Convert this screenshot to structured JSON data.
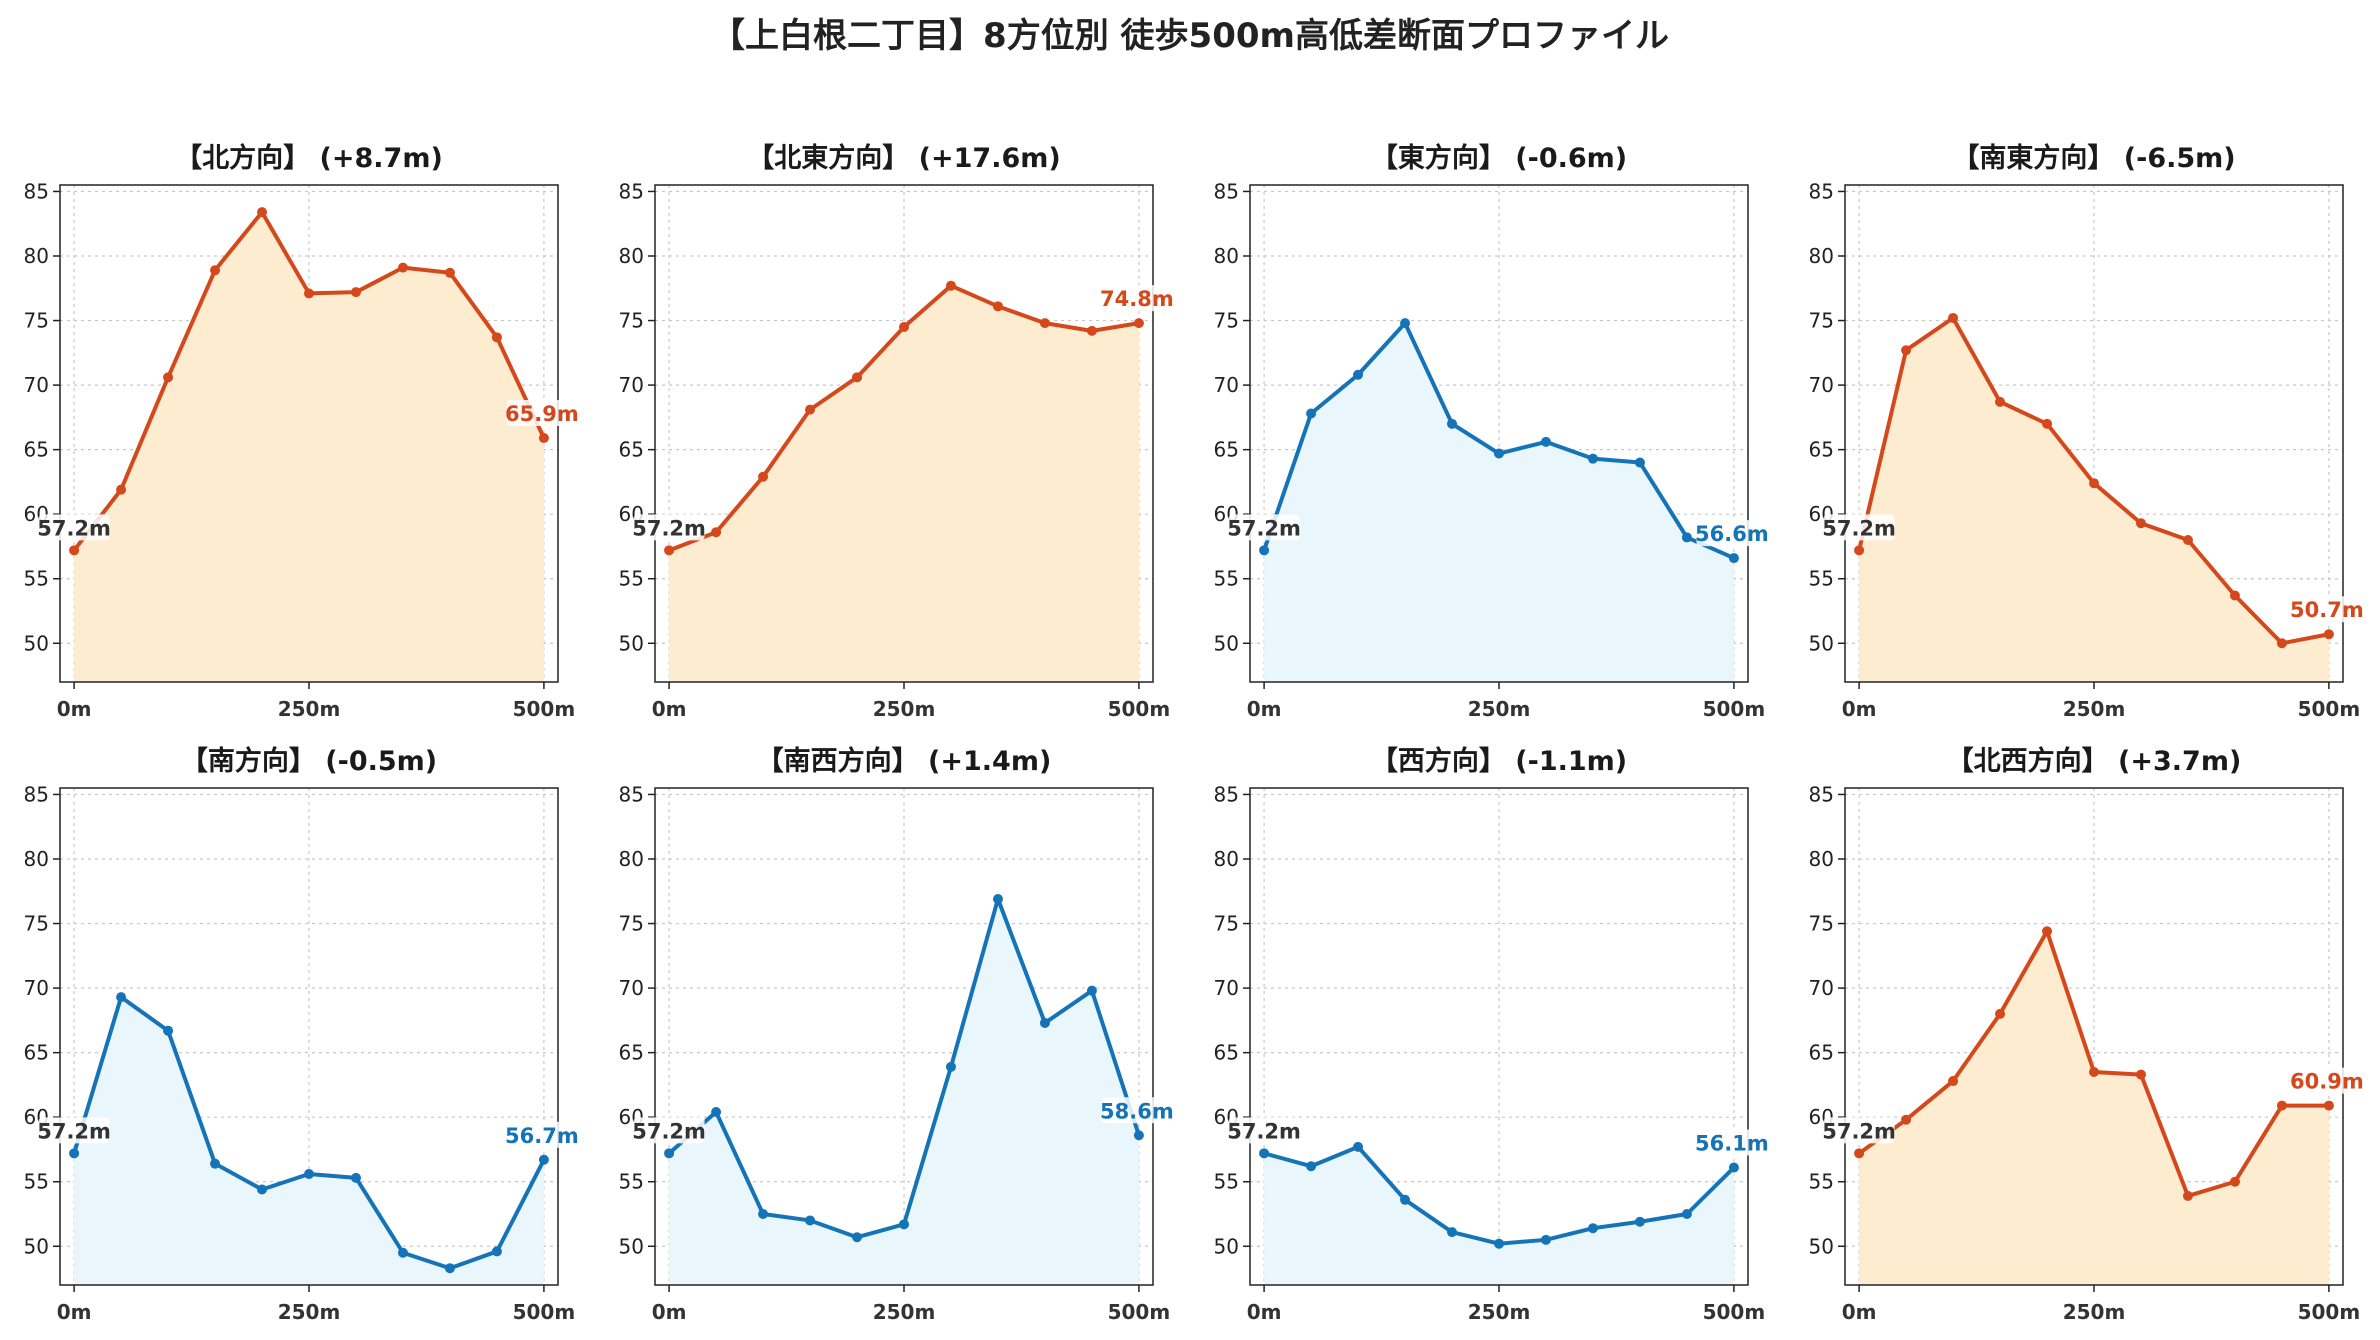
{
  "title": "【上白根二丁目】8方位別 徒歩500m高低差断面プロファイル",
  "colors": {
    "up_line": "#d4481c",
    "up_fill": "#fdeccf",
    "down_line": "#1573b8",
    "down_fill": "#e9f6fc",
    "start_label": "#333333",
    "grid": "#c8c8c8"
  },
  "chart_data": [
    {
      "type": "area",
      "title": "【北方向】 (+8.7m)",
      "trend": "up",
      "x": [
        0,
        50,
        100,
        150,
        200,
        250,
        300,
        350,
        400,
        450,
        500
      ],
      "values": [
        57.2,
        61.9,
        70.6,
        78.9,
        83.4,
        77.1,
        77.2,
        79.1,
        78.7,
        73.7,
        65.9
      ],
      "start_label": "57.2m",
      "end_label": "65.9m",
      "xticks": [
        "0m",
        "250m",
        "500m"
      ],
      "yticks": [
        50,
        55,
        60,
        65,
        70,
        75,
        80,
        85
      ],
      "ylim": [
        47,
        85.5
      ],
      "xlim": [
        -15,
        515
      ],
      "grid": true
    },
    {
      "type": "area",
      "title": "【北東方向】 (+17.6m)",
      "trend": "up",
      "x": [
        0,
        50,
        100,
        150,
        200,
        250,
        300,
        350,
        400,
        450,
        500
      ],
      "values": [
        57.2,
        58.6,
        62.9,
        68.1,
        70.6,
        74.5,
        77.7,
        76.1,
        74.8,
        74.2,
        74.8
      ],
      "start_label": "57.2m",
      "end_label": "74.8m",
      "xticks": [
        "0m",
        "250m",
        "500m"
      ],
      "yticks": [
        50,
        55,
        60,
        65,
        70,
        75,
        80,
        85
      ],
      "ylim": [
        47,
        85.5
      ],
      "xlim": [
        -15,
        515
      ],
      "grid": true
    },
    {
      "type": "area",
      "title": "【東方向】 (-0.6m)",
      "trend": "down",
      "x": [
        0,
        50,
        100,
        150,
        200,
        250,
        300,
        350,
        400,
        450,
        500
      ],
      "values": [
        57.2,
        67.8,
        70.8,
        74.8,
        67.0,
        64.7,
        65.6,
        64.3,
        64.0,
        58.2,
        56.6
      ],
      "start_label": "57.2m",
      "end_label": "56.6m",
      "xticks": [
        "0m",
        "250m",
        "500m"
      ],
      "yticks": [
        50,
        55,
        60,
        65,
        70,
        75,
        80,
        85
      ],
      "ylim": [
        47,
        85.5
      ],
      "xlim": [
        -15,
        515
      ],
      "grid": true
    },
    {
      "type": "area",
      "title": "【南東方向】 (-6.5m)",
      "trend": "up",
      "x": [
        0,
        50,
        100,
        150,
        200,
        250,
        300,
        350,
        400,
        450,
        500
      ],
      "values": [
        57.2,
        72.7,
        75.2,
        68.7,
        67.0,
        62.4,
        59.3,
        58.0,
        53.7,
        50.0,
        50.7
      ],
      "start_label": "57.2m",
      "end_label": "50.7m",
      "xticks": [
        "0m",
        "250m",
        "500m"
      ],
      "yticks": [
        50,
        55,
        60,
        65,
        70,
        75,
        80,
        85
      ],
      "ylim": [
        47,
        85.5
      ],
      "xlim": [
        -15,
        515
      ],
      "grid": true
    },
    {
      "type": "area",
      "title": "【南方向】 (-0.5m)",
      "trend": "down",
      "x": [
        0,
        50,
        100,
        150,
        200,
        250,
        300,
        350,
        400,
        450,
        500
      ],
      "values": [
        57.2,
        69.3,
        66.7,
        56.4,
        54.4,
        55.6,
        55.3,
        49.5,
        48.3,
        49.6,
        56.7
      ],
      "start_label": "57.2m",
      "end_label": "56.7m",
      "xticks": [
        "0m",
        "250m",
        "500m"
      ],
      "yticks": [
        50,
        55,
        60,
        65,
        70,
        75,
        80,
        85
      ],
      "ylim": [
        47,
        85.5
      ],
      "xlim": [
        -15,
        515
      ],
      "grid": true
    },
    {
      "type": "area",
      "title": "【南西方向】 (+1.4m)",
      "trend": "down",
      "x": [
        0,
        50,
        100,
        150,
        200,
        250,
        300,
        350,
        400,
        450,
        500
      ],
      "values": [
        57.2,
        60.4,
        52.5,
        52.0,
        50.7,
        51.7,
        63.9,
        76.9,
        67.3,
        69.8,
        58.6
      ],
      "start_label": "57.2m",
      "end_label": "58.6m",
      "xticks": [
        "0m",
        "250m",
        "500m"
      ],
      "yticks": [
        50,
        55,
        60,
        65,
        70,
        75,
        80,
        85
      ],
      "ylim": [
        47,
        85.5
      ],
      "xlim": [
        -15,
        515
      ],
      "grid": true
    },
    {
      "type": "area",
      "title": "【西方向】 (-1.1m)",
      "trend": "down",
      "x": [
        0,
        50,
        100,
        150,
        200,
        250,
        300,
        350,
        400,
        450,
        500
      ],
      "values": [
        57.2,
        56.2,
        57.7,
        53.6,
        51.1,
        50.2,
        50.5,
        51.4,
        51.9,
        52.5,
        56.1
      ],
      "start_label": "57.2m",
      "end_label": "56.1m",
      "xticks": [
        "0m",
        "250m",
        "500m"
      ],
      "yticks": [
        50,
        55,
        60,
        65,
        70,
        75,
        80,
        85
      ],
      "ylim": [
        47,
        85.5
      ],
      "xlim": [
        -15,
        515
      ],
      "grid": true
    },
    {
      "type": "area",
      "title": "【北西方向】 (+3.7m)",
      "trend": "up",
      "x": [
        0,
        50,
        100,
        150,
        200,
        250,
        300,
        350,
        400,
        450,
        500
      ],
      "values": [
        57.2,
        59.8,
        62.8,
        68.0,
        74.4,
        63.5,
        63.3,
        53.9,
        55.0,
        60.9,
        60.9
      ],
      "start_label": "57.2m",
      "end_label": "60.9m",
      "xticks": [
        "0m",
        "250m",
        "500m"
      ],
      "yticks": [
        50,
        55,
        60,
        65,
        70,
        75,
        80,
        85
      ],
      "ylim": [
        47,
        85.5
      ],
      "xlim": [
        -15,
        515
      ],
      "grid": true
    }
  ]
}
